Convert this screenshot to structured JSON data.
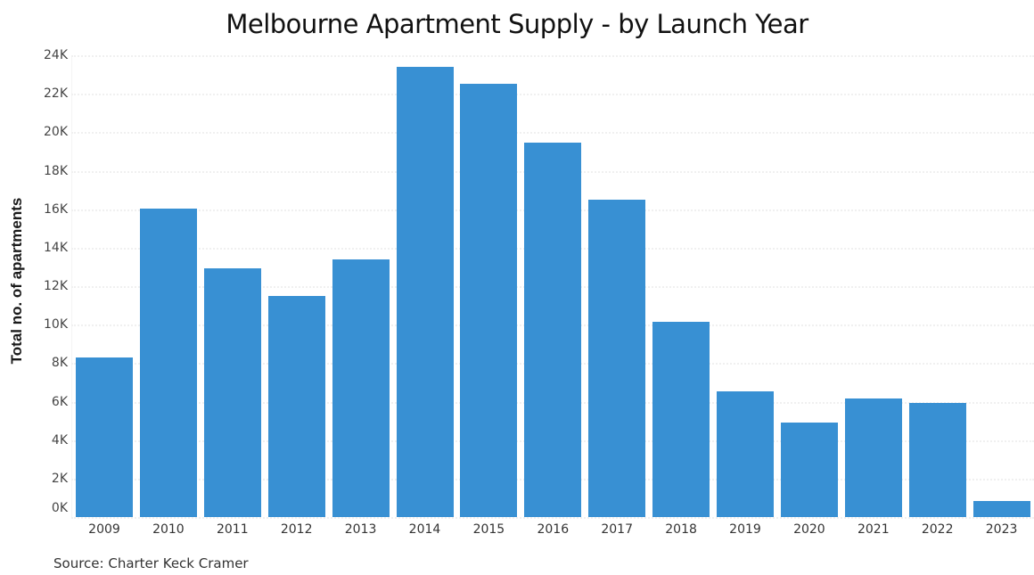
{
  "chart_data": {
    "type": "bar",
    "title": "Melbourne Apartment Supply - by Launch Year",
    "xlabel": "",
    "ylabel": "Total no. of apartments",
    "categories": [
      "2009",
      "2010",
      "2011",
      "2012",
      "2013",
      "2014",
      "2015",
      "2016",
      "2017",
      "2018",
      "2019",
      "2020",
      "2021",
      "2022",
      "2023"
    ],
    "values": [
      8300,
      16050,
      12950,
      11500,
      13400,
      23400,
      22500,
      19450,
      16500,
      10150,
      6550,
      4900,
      6150,
      5950,
      850
    ],
    "ylim": [
      0,
      24000
    ],
    "yticks": [
      0,
      2000,
      4000,
      6000,
      8000,
      10000,
      12000,
      14000,
      16000,
      18000,
      20000,
      22000,
      24000
    ],
    "ytick_labels": [
      "0K",
      "2K",
      "4K",
      "6K",
      "8K",
      "10K",
      "12K",
      "14K",
      "16K",
      "18K",
      "20K",
      "22K",
      "24K"
    ],
    "grid": true,
    "legend": null,
    "bar_color": "#3890d3"
  },
  "source": "Source: Charter Keck Cramer"
}
